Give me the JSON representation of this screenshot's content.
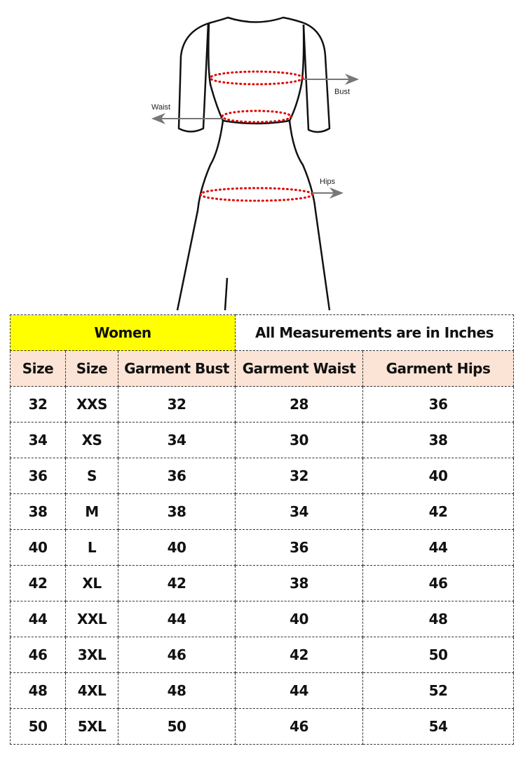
{
  "figure": {
    "labels": {
      "bust": "Bust",
      "waist": "Waist",
      "hips": "Hips"
    },
    "colors": {
      "outline": "#111111",
      "measure_dots": "#e00000",
      "arrow": "#777777"
    }
  },
  "table": {
    "title": "Women",
    "note": "All Measurements are in Inches",
    "headers": [
      "Size",
      "Size",
      "Garment Bust",
      "Garment Waist",
      "Garment Hips"
    ],
    "rows": [
      [
        "32",
        "XXS",
        "32",
        "28",
        "36"
      ],
      [
        "34",
        "XS",
        "34",
        "30",
        "38"
      ],
      [
        "36",
        "S",
        "36",
        "32",
        "40"
      ],
      [
        "38",
        "M",
        "38",
        "34",
        "42"
      ],
      [
        "40",
        "L",
        "40",
        "36",
        "44"
      ],
      [
        "42",
        "XL",
        "42",
        "38",
        "46"
      ],
      [
        "44",
        "XXL",
        "44",
        "40",
        "48"
      ],
      [
        "46",
        "3XL",
        "46",
        "42",
        "50"
      ],
      [
        "48",
        "4XL",
        "48",
        "44",
        "52"
      ],
      [
        "50",
        "5XL",
        "50",
        "46",
        "54"
      ]
    ],
    "colors": {
      "title_bg": "#ffff00",
      "header_bg": "#fbe4d5"
    }
  }
}
